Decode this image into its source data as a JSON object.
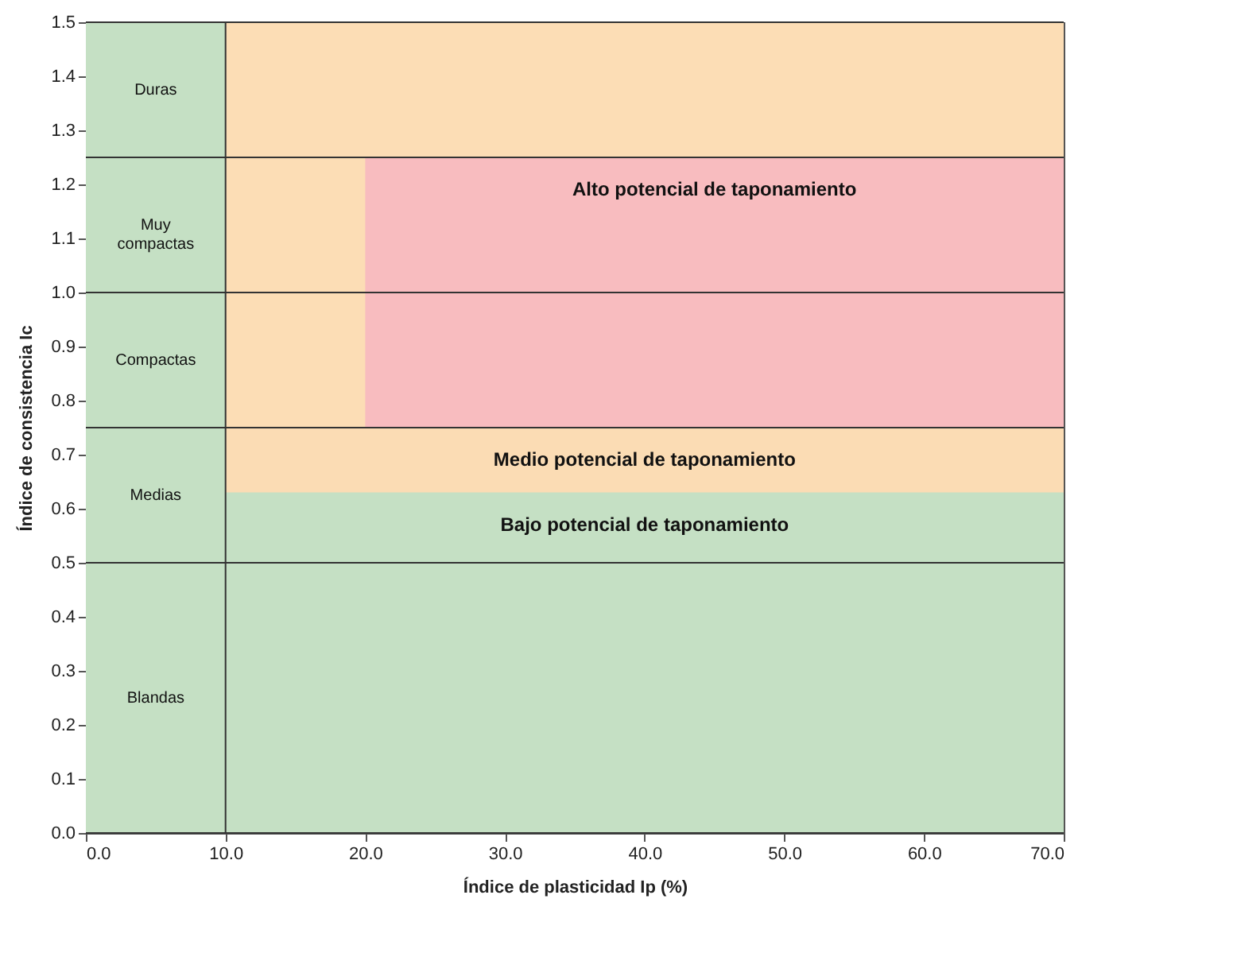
{
  "chart_data": {
    "type": "area",
    "xlabel": "Índice de plasticidad Ip (%)",
    "ylabel": "Índice de consistencia Ic",
    "xlim": [
      0,
      70
    ],
    "ylim": [
      0,
      1.5
    ],
    "xticks": [
      {
        "value": 0,
        "label": "0.0"
      },
      {
        "value": 10,
        "label": "10.0"
      },
      {
        "value": 20,
        "label": "20.0"
      },
      {
        "value": 30,
        "label": "30.0"
      },
      {
        "value": 40,
        "label": "40.0"
      },
      {
        "value": 50,
        "label": "50.0"
      },
      {
        "value": 60,
        "label": "60.0"
      },
      {
        "value": 70,
        "label": "70.0"
      }
    ],
    "yticks": [
      {
        "value": 0,
        "label": "0.0"
      },
      {
        "value": 0.1,
        "label": "0.1"
      },
      {
        "value": 0.2,
        "label": "0.2"
      },
      {
        "value": 0.3,
        "label": "0.3"
      },
      {
        "value": 0.4,
        "label": "0.4"
      },
      {
        "value": 0.5,
        "label": "0.5"
      },
      {
        "value": 0.6,
        "label": "0.6"
      },
      {
        "value": 0.7,
        "label": "0.7"
      },
      {
        "value": 0.8,
        "label": "0.8"
      },
      {
        "value": 0.9,
        "label": "0.9"
      },
      {
        "value": 1.0,
        "label": "1.0"
      },
      {
        "value": 1.1,
        "label": "1.1"
      },
      {
        "value": 1.2,
        "label": "1.2"
      },
      {
        "value": 1.3,
        "label": "1.3"
      },
      {
        "value": 1.4,
        "label": "1.4"
      },
      {
        "value": 1.5,
        "label": "1.5"
      }
    ],
    "series": [
      {
        "color": "#fcddb5",
        "x": [
          10,
          70
        ],
        "values": [
          1.5,
          1.5
        ]
      },
      {
        "name": "Alto potencial de taponamiento",
        "color": "#f8bcbf",
        "x": [
          20,
          70
        ],
        "values": [
          1.25,
          1.25
        ]
      },
      {
        "name": "Medio potencial de taponamiento",
        "color": "#fbdcb4",
        "x": [
          10,
          70
        ],
        "values": [
          0.75,
          0.75
        ]
      },
      {
        "name": "Bajo potencial de taponamiento",
        "color": "#c5e0c4",
        "x": [
          10,
          70
        ],
        "values": [
          0.63,
          0.63
        ]
      }
    ],
    "ref_lines": [
      {
        "axis": "x",
        "value": 10,
        "color": "#333333"
      }
    ],
    "bands": [
      {
        "axis": "y",
        "from": 1.25,
        "to": 1.5,
        "label": "Duras",
        "color": "#c5e0c4"
      },
      {
        "axis": "y",
        "from": 1.0,
        "to": 1.25,
        "label": "Muy\ncompactas",
        "color": "#c5e0c4"
      },
      {
        "axis": "y",
        "from": 0.75,
        "to": 1.0,
        "label": "Compactas",
        "color": "#c5e0c4"
      },
      {
        "axis": "y",
        "from": 0.5,
        "to": 0.75,
        "label": "Medias",
        "color": "#c5e0c4"
      },
      {
        "axis": "y",
        "from": 0,
        "to": 0.5,
        "label": "Blandas",
        "color": "#c5e0c4"
      }
    ]
  }
}
